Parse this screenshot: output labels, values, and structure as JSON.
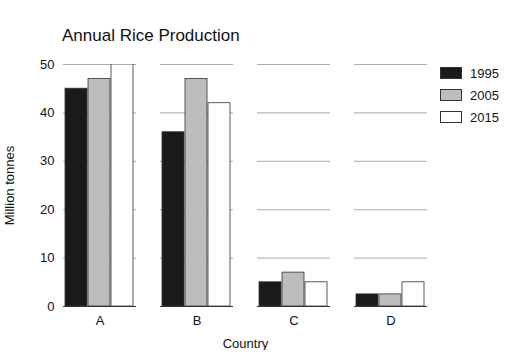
{
  "chart_data": {
    "type": "bar",
    "title": "Annual Rice Production",
    "x_label": "Country",
    "y_label": "Million tonnes",
    "categories": [
      "A",
      "B",
      "C",
      "D"
    ],
    "series": [
      {
        "name": "1995",
        "color": "#1a1a1a",
        "values": [
          45,
          36,
          5,
          2.5
        ]
      },
      {
        "name": "2005",
        "color": "#bdbdbd",
        "values": [
          47,
          47,
          7,
          2.5
        ]
      },
      {
        "name": "2015",
        "color": "#ffffff",
        "values": [
          50,
          42,
          5,
          5
        ]
      }
    ],
    "ylim": [
      0,
      50
    ],
    "yticks": [
      0,
      10,
      20,
      30,
      40,
      50
    ],
    "grid": true,
    "legend": "right"
  }
}
